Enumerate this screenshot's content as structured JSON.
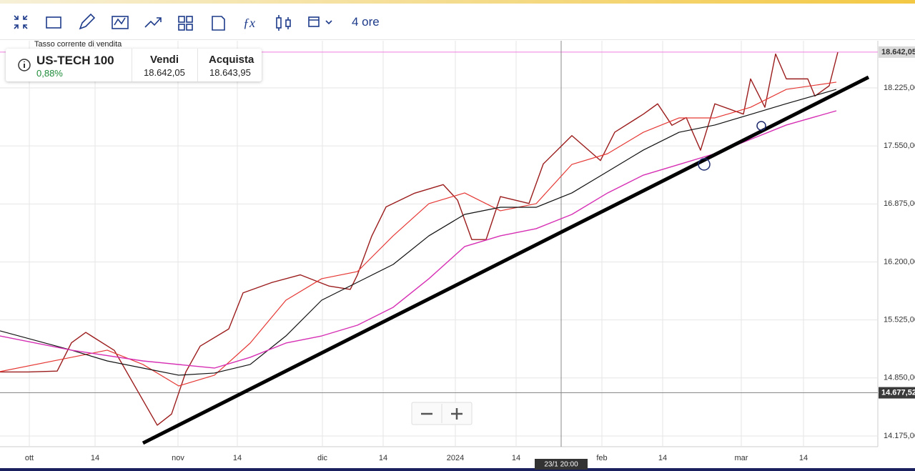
{
  "toolbar": {
    "timeframe": "4 ore"
  },
  "quote": {
    "caption": "Tasso corrente di vendita",
    "instrument": "US-TECH 100",
    "change": "0,88%",
    "sell_label": "Vendi",
    "sell": "18.642,05",
    "buy_label": "Acquista",
    "buy": "18.643,95"
  },
  "chart_data": {
    "type": "line",
    "xlim": [
      0,
      122.8
    ],
    "ylim": [
      14050,
      18774
    ],
    "xticks": [
      {
        "value": 4.1,
        "label": "ott"
      },
      {
        "value": 13.3,
        "label": "14"
      },
      {
        "value": 24.9,
        "label": "nov"
      },
      {
        "value": 33.2,
        "label": "14"
      },
      {
        "value": 45.1,
        "label": "dic"
      },
      {
        "value": 53.6,
        "label": "14"
      },
      {
        "value": 63.7,
        "label": "2024"
      },
      {
        "value": 72.2,
        "label": "14"
      },
      {
        "value": 84.2,
        "label": "feb"
      },
      {
        "value": 92.7,
        "label": "14"
      },
      {
        "value": 103.7,
        "label": "mar"
      },
      {
        "value": 112.4,
        "label": "14"
      }
    ],
    "yticks": [
      {
        "value": 18225,
        "label": "18.225,00"
      },
      {
        "value": 17550,
        "label": "17.550,00"
      },
      {
        "value": 16875,
        "label": "16.875,00"
      },
      {
        "value": 16200,
        "label": "16.200,00"
      },
      {
        "value": 15525,
        "label": "15.525,00"
      },
      {
        "value": 14850,
        "label": "14.850,00"
      },
      {
        "value": 14175,
        "label": "14.175,00"
      }
    ],
    "grid": true,
    "price_line": {
      "value": 18642.05,
      "label": "18.642,05",
      "color": "#f07ce0"
    },
    "crosshair_y": {
      "value": 14677.52,
      "label": "14.677,52"
    },
    "crosshair_x": {
      "value": 78.5,
      "label": "23/1 20:00"
    },
    "series": [
      {
        "color": "#9b1c1c",
        "width": 1.4,
        "x": [
          0,
          4,
          8,
          10,
          12,
          16,
          20,
          22,
          24,
          26,
          28,
          32,
          34,
          38,
          42,
          46,
          49,
          50,
          52,
          54,
          58,
          62,
          64,
          66,
          68,
          70,
          74,
          76,
          80,
          84,
          86,
          90,
          92,
          94,
          96,
          98,
          100,
          104,
          105,
          107,
          108.5,
          110,
          113,
          114,
          116,
          117.2
        ],
        "values": [
          14920,
          14920,
          14930,
          15260,
          15380,
          15170,
          14590,
          14300,
          14430,
          14920,
          15220,
          15420,
          15840,
          15960,
          16050,
          15920,
          15880,
          16050,
          16500,
          16840,
          17000,
          17100,
          16920,
          16460,
          16460,
          16960,
          16880,
          17340,
          17670,
          17380,
          17710,
          17920,
          18040,
          17790,
          17880,
          17500,
          18040,
          17920,
          18330,
          18000,
          18620,
          18330,
          18330,
          18130,
          18250,
          18640
        ]
      },
      {
        "color": "#e53935",
        "width": 1.2,
        "x": [
          0,
          10,
          15,
          20,
          25,
          30,
          35,
          40,
          45,
          50,
          55,
          60,
          65,
          70,
          75,
          80,
          85,
          90,
          95,
          100,
          105,
          110,
          117
        ],
        "values": [
          14924,
          15090,
          15173,
          15007,
          14757,
          14882,
          15256,
          15755,
          16005,
          16088,
          16504,
          16878,
          17003,
          16795,
          16878,
          17335,
          17460,
          17709,
          17876,
          17876,
          18000,
          18208,
          18292
        ]
      },
      {
        "color": "#111111",
        "width": 1.2,
        "x": [
          0,
          10,
          15,
          20,
          25,
          30,
          35,
          40,
          45,
          50,
          55,
          60,
          65,
          70,
          75,
          80,
          85,
          90,
          95,
          100,
          105,
          110,
          117
        ],
        "values": [
          15398,
          15173,
          15048,
          14965,
          14882,
          14907,
          15007,
          15339,
          15755,
          15963,
          16171,
          16504,
          16753,
          16836,
          16836,
          17003,
          17252,
          17502,
          17709,
          17793,
          17917,
          18042,
          18208
        ]
      },
      {
        "color": "#d62fb4",
        "width": 1.4,
        "x": [
          0,
          10,
          20,
          30,
          35,
          40,
          45,
          50,
          55,
          60,
          65,
          70,
          75,
          80,
          85,
          90,
          95,
          100,
          105,
          110,
          117
        ],
        "values": [
          15339,
          15173,
          15048,
          14965,
          15090,
          15256,
          15339,
          15464,
          15672,
          16005,
          16379,
          16504,
          16587,
          16753,
          17003,
          17210,
          17335,
          17460,
          17626,
          17793,
          17959
        ]
      },
      {
        "color": "#000000",
        "width": 5,
        "x": [
          20,
          121.5
        ],
        "values": [
          14092,
          18350
        ]
      }
    ]
  }
}
